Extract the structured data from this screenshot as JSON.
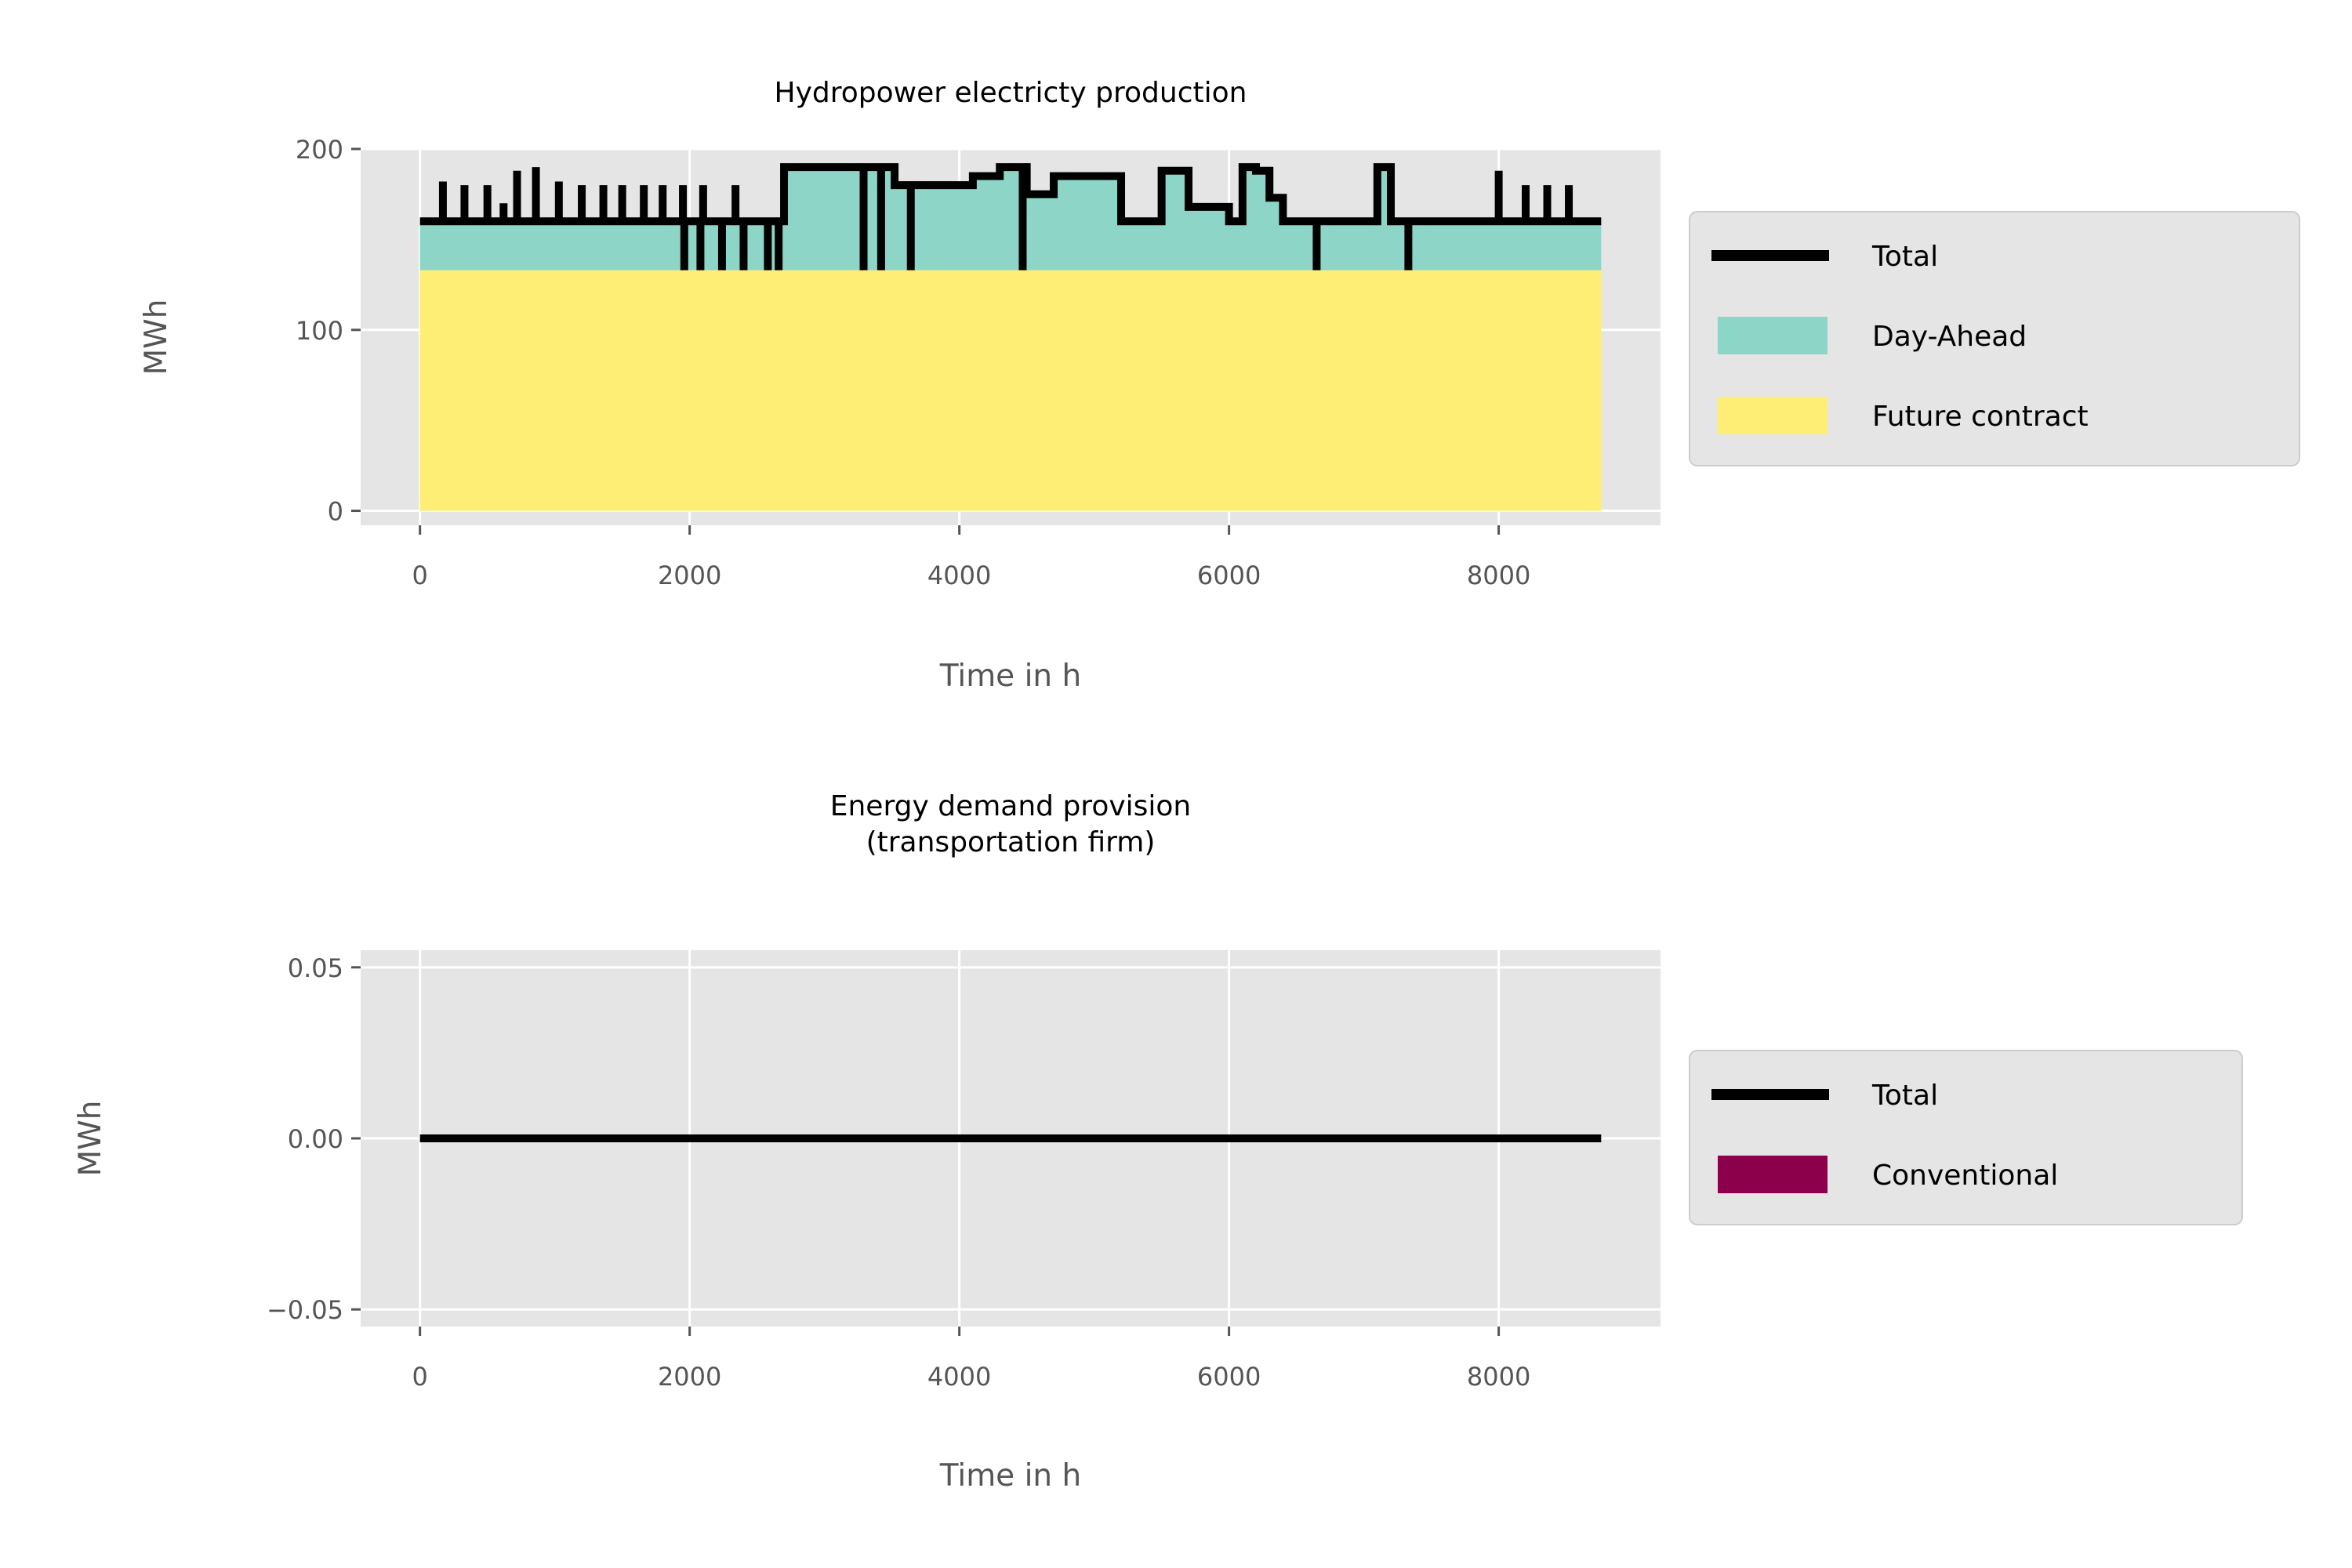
{
  "chart_data": [
    {
      "type": "area",
      "title": "Hydropower electricty production",
      "xlabel": "Time in h",
      "ylabel": "MWh",
      "xlim": [
        -440,
        9200
      ],
      "ylim": [
        -8,
        200
      ],
      "xticks": [
        0,
        2000,
        4000,
        6000,
        8000
      ],
      "yticks": [
        0,
        100,
        200
      ],
      "xtick_labels": [
        "0",
        "2000",
        "4000",
        "6000",
        "8000"
      ],
      "ytick_labels": [
        "0",
        "100",
        "200"
      ],
      "grid": true,
      "legend_position": "right",
      "legend": [
        "Total",
        "Day-Ahead",
        "Future contract"
      ],
      "series": [
        {
          "name": "Future contract",
          "kind": "stacked-area",
          "color": "#ffee75",
          "x": [
            0,
            8760
          ],
          "values": [
            133,
            133
          ]
        },
        {
          "name": "Day-Ahead",
          "kind": "stacked-area",
          "color": "#8dd5c6",
          "x": [
            0,
            2690,
            2700,
            3300,
            3520,
            4000,
            4100,
            4300,
            4500,
            4700,
            5000,
            5200,
            5400,
            5500,
            5700,
            6000,
            6100,
            6200,
            6300,
            6400,
            7000,
            7100,
            7200,
            7300,
            8760
          ],
          "values": [
            160,
            160,
            190,
            190,
            180,
            180,
            185,
            190,
            175,
            185,
            185,
            160,
            160,
            188,
            168,
            160,
            190,
            188,
            173,
            160,
            160,
            190,
            160,
            160,
            160
          ]
        },
        {
          "name": "Total",
          "kind": "step-line",
          "color": "#000000",
          "x": [
            0,
            2690,
            2700,
            3300,
            3520,
            4000,
            4100,
            4300,
            4500,
            4700,
            5000,
            5200,
            5400,
            5500,
            5700,
            6000,
            6100,
            6200,
            6300,
            6400,
            7000,
            7100,
            7200,
            7300,
            8760
          ],
          "values": [
            160,
            160,
            190,
            190,
            180,
            180,
            185,
            190,
            175,
            185,
            185,
            160,
            160,
            188,
            168,
            160,
            190,
            188,
            173,
            160,
            160,
            190,
            160,
            160,
            160
          ],
          "spikes_up": [
            [
              170,
              182
            ],
            [
              330,
              180
            ],
            [
              500,
              180
            ],
            [
              620,
              170
            ],
            [
              720,
              188
            ],
            [
              860,
              190
            ],
            [
              1030,
              182
            ],
            [
              1200,
              180
            ],
            [
              1360,
              180
            ],
            [
              1500,
              180
            ],
            [
              1660,
              180
            ],
            [
              1800,
              180
            ],
            [
              1950,
              180
            ],
            [
              2100,
              180
            ],
            [
              2340,
              180
            ],
            [
              8000,
              188
            ],
            [
              8200,
              180
            ],
            [
              8360,
              180
            ],
            [
              8520,
              180
            ]
          ],
          "spikes_down": [
            [
              1960,
              133
            ],
            [
              2080,
              133
            ],
            [
              2240,
              133
            ],
            [
              2400,
              133
            ],
            [
              2580,
              133
            ],
            [
              2660,
              133
            ],
            [
              3290,
              133
            ],
            [
              3420,
              133
            ],
            [
              3640,
              133
            ],
            [
              4470,
              133
            ],
            [
              6650,
              133
            ],
            [
              7330,
              133
            ]
          ]
        }
      ]
    },
    {
      "type": "area",
      "title": "Energy demand provision\n(transportation firm)",
      "title_lines": [
        "Energy demand provision",
        "(transportation firm)"
      ],
      "xlabel": "Time in h",
      "ylabel": "MWh",
      "xlim": [
        -440,
        9200
      ],
      "ylim": [
        -0.055,
        0.055
      ],
      "xticks": [
        0,
        2000,
        4000,
        6000,
        8000
      ],
      "yticks": [
        -0.05,
        0,
        0.05
      ],
      "xtick_labels": [
        "0",
        "2000",
        "4000",
        "6000",
        "8000"
      ],
      "ytick_labels": [
        "−0.05",
        "0.00",
        "0.05"
      ],
      "grid": true,
      "legend_position": "right",
      "legend": [
        "Total",
        "Conventional"
      ],
      "series": [
        {
          "name": "Conventional",
          "kind": "stacked-area",
          "color": "#8c004b",
          "x": [
            0,
            8760
          ],
          "values": [
            0,
            0
          ]
        },
        {
          "name": "Total",
          "kind": "step-line",
          "color": "#000000",
          "x": [
            0,
            8760
          ],
          "values": [
            0,
            0
          ]
        }
      ]
    }
  ]
}
